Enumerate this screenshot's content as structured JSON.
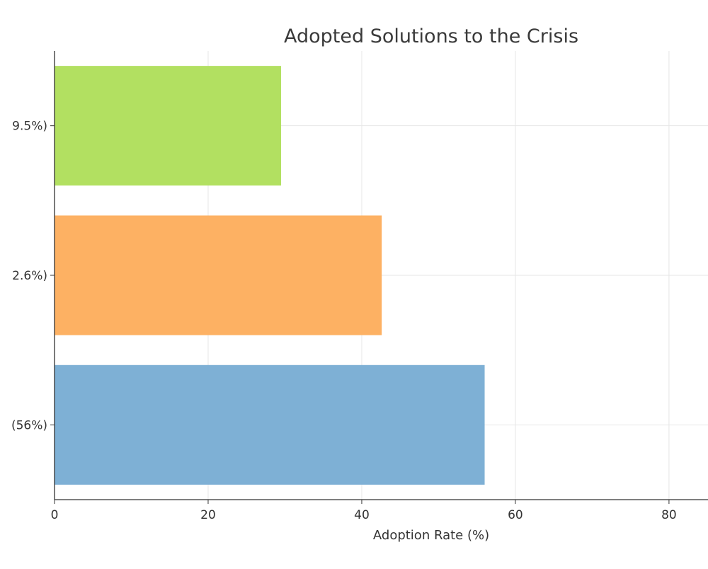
{
  "chart_data": {
    "type": "bar",
    "orientation": "horizontal",
    "title": "Adopted Solutions to the Crisis",
    "xlabel": "Adoption Rate (%)",
    "ylabel": "",
    "xlim": [
      0,
      86
    ],
    "xticks": [
      0,
      20,
      40,
      60,
      80
    ],
    "categories": [
      "(56%)",
      "2.6%)",
      "9.5%)"
    ],
    "values": [
      56,
      42.6,
      29.5
    ],
    "colors": [
      "#7eb0d5",
      "#fdb163",
      "#b2e061"
    ],
    "grid": true,
    "legend": "none"
  }
}
